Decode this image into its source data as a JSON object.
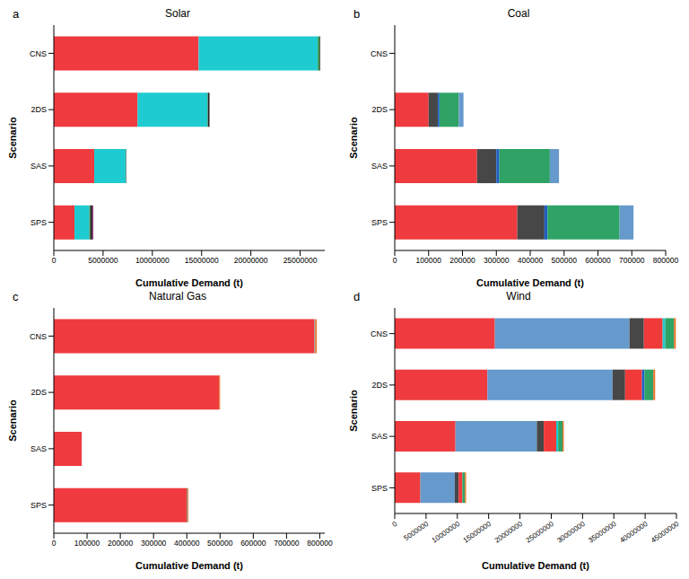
{
  "chart_data": [
    {
      "type": "bar",
      "title": "Solar",
      "annotations": [
        "a"
      ],
      "xlabel": "Cumulative Demand (t)",
      "ylabel": "Scenario",
      "orientation": "horizontal",
      "stacked": true,
      "grid": false,
      "categories": [
        "CNS",
        "2DS",
        "SAS",
        "SPS"
      ],
      "xlim": [
        0,
        27500000
      ],
      "xticks": [
        0,
        5000000,
        10000000,
        15000000,
        20000000,
        25000000
      ],
      "series": [
        {
          "color": "#ef3b3f",
          "values": [
            14700000,
            8500000,
            4100000,
            2100000
          ]
        },
        {
          "color": "#1ecbd0",
          "values": [
            12100000,
            7100000,
            3200000,
            1500000
          ]
        },
        {
          "color": "#2e8b3e",
          "values": [
            200000,
            50000,
            30000,
            100000
          ]
        },
        {
          "color": "#222222",
          "values": [
            50000,
            150000,
            30000,
            200000
          ]
        },
        {
          "color": "#8a2d6e",
          "values": [
            0,
            0,
            0,
            100000
          ]
        }
      ]
    },
    {
      "type": "bar",
      "title": "Coal",
      "annotations": [
        "b"
      ],
      "xlabel": "Cumulative Demand (t)",
      "ylabel": "Scenario",
      "orientation": "horizontal",
      "stacked": true,
      "grid": false,
      "categories": [
        "CNS",
        "2DS",
        "SAS",
        "SPS"
      ],
      "xlim": [
        0,
        800000
      ],
      "xticks": [
        0,
        100000,
        200000,
        300000,
        400000,
        500000,
        600000,
        700000,
        800000
      ],
      "series": [
        {
          "color": "#ef3b3f",
          "values": [
            0,
            100000,
            243000,
            362000
          ]
        },
        {
          "color": "#474747",
          "values": [
            0,
            27000,
            57000,
            80000
          ]
        },
        {
          "color": "#1f5fc4",
          "values": [
            0,
            5000,
            9000,
            9000
          ]
        },
        {
          "color": "#2fa366",
          "values": [
            0,
            57000,
            149000,
            213000
          ]
        },
        {
          "color": "#6699cc",
          "values": [
            0,
            14000,
            27000,
            41000
          ]
        }
      ]
    },
    {
      "type": "bar",
      "title": "Natural Gas",
      "annotations": [
        "c"
      ],
      "xlabel": "Cumulative Demand (t)",
      "ylabel": "Scenario",
      "orientation": "horizontal",
      "stacked": true,
      "grid": false,
      "categories": [
        "CNS",
        "2DS",
        "SAS",
        "SPS"
      ],
      "xlim": [
        0,
        815000
      ],
      "xticks": [
        0,
        100000,
        200000,
        300000,
        400000,
        500000,
        600000,
        700000,
        800000
      ],
      "series": [
        {
          "color": "#ef3b3f",
          "values": [
            784000,
            497000,
            84000,
            401000
          ]
        },
        {
          "color": "#6699cc",
          "values": [
            2000,
            0,
            0,
            0
          ]
        },
        {
          "color": "#2fa366",
          "values": [
            0,
            0,
            0,
            2000
          ]
        },
        {
          "color": "#e8742a",
          "values": [
            5000,
            3000,
            0,
            2000
          ]
        }
      ]
    },
    {
      "type": "bar",
      "title": "Wind",
      "annotations": [
        "d"
      ],
      "xlabel": "Cumulative Demand (t)",
      "ylabel": "Scenario",
      "orientation": "horizontal",
      "stacked": true,
      "grid": false,
      "categories": [
        "CNS",
        "2DS",
        "SAS",
        "SPS"
      ],
      "xlim": [
        0,
        45000000
      ],
      "xticks": [
        0,
        5000000,
        10000000,
        15000000,
        20000000,
        25000000,
        30000000,
        35000000,
        40000000,
        45000000
      ],
      "series": [
        {
          "color": "#ef3b3f",
          "values": [
            16000000,
            14800000,
            9700000,
            4100000
          ]
        },
        {
          "color": "#6699cc",
          "values": [
            21500000,
            20000000,
            13000000,
            5500000
          ]
        },
        {
          "color": "#474747",
          "values": [
            2300000,
            2000000,
            1100000,
            600000
          ]
        },
        {
          "color": "#f03a3a",
          "values": [
            3000000,
            2700000,
            2000000,
            600000
          ]
        },
        {
          "color": "#1f5fc4",
          "values": [
            0,
            400000,
            0,
            0
          ]
        },
        {
          "color": "#1ecbd0",
          "values": [
            400000,
            0,
            300000,
            0
          ]
        },
        {
          "color": "#2fa366",
          "values": [
            1400000,
            1400000,
            700000,
            400000
          ]
        },
        {
          "color": "#e8742a",
          "values": [
            300000,
            300000,
            200000,
            200000
          ]
        }
      ]
    }
  ]
}
